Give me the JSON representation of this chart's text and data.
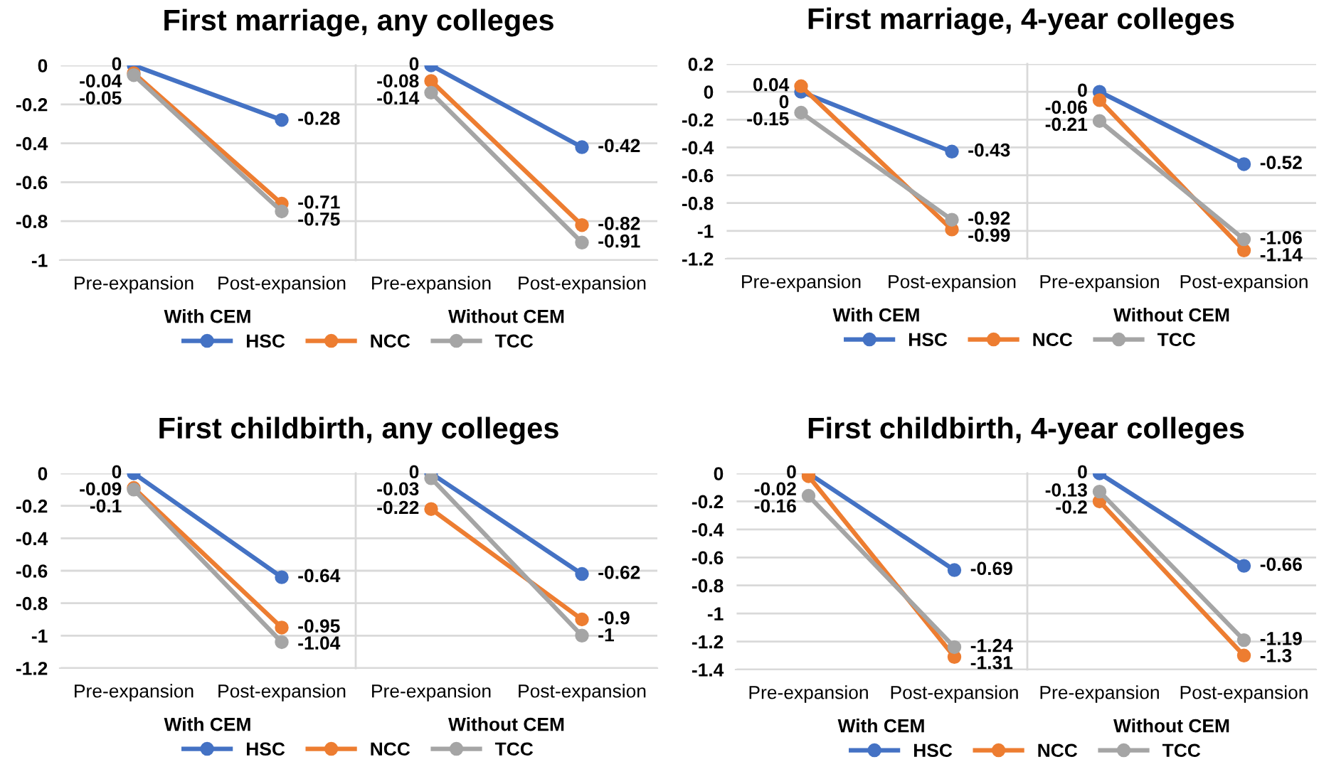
{
  "chart_data": [
    {
      "type": "line",
      "title": "First marriage, any colleges",
      "xlabel": "With CEM",
      "categories": [
        "Pre-expansion",
        "Post-expansion"
      ],
      "ylim": [
        -1,
        0
      ],
      "yticks": [
        0,
        -0.2,
        -0.4,
        -0.6,
        -0.8,
        -1
      ],
      "grid": "y",
      "marker": "circle",
      "data_labels": true,
      "legend": "bottom",
      "series": [
        {
          "name": "HSC",
          "color": "#4472c4",
          "values": [
            0,
            -0.28
          ]
        },
        {
          "name": "NCC",
          "color": "#ed7d31",
          "values": [
            -0.04,
            -0.71
          ]
        },
        {
          "name": "TCC",
          "color": "#a5a5a5",
          "values": [
            -0.05,
            -0.75
          ]
        }
      ]
    },
    {
      "type": "line",
      "xlabel": "Without CEM",
      "categories": [
        "Pre-expansion",
        "Post-expansion"
      ],
      "ylim": [
        -1,
        0
      ],
      "yticks": [
        0,
        -0.2,
        -0.4,
        -0.6,
        -0.8,
        -1
      ],
      "grid": "y",
      "marker": "circle",
      "data_labels": true,
      "tick_labels": "x",
      "series": [
        {
          "color": "#4472c4",
          "values": [
            0,
            -0.42
          ]
        },
        {
          "color": "#ed7d31",
          "values": [
            -0.08,
            -0.82
          ]
        },
        {
          "color": "#a5a5a5",
          "values": [
            -0.14,
            -0.91
          ]
        }
      ]
    },
    {
      "type": "line",
      "title": "First marriage, 4-year colleges",
      "xlabel": "With CEM",
      "categories": [
        "Pre-expansion",
        "Post-expansion"
      ],
      "ylim": [
        -1.2,
        0.2
      ],
      "yticks": [
        0.2,
        0,
        -0.2,
        -0.4,
        -0.6,
        -0.8,
        -1,
        -1.2
      ],
      "grid": "y",
      "marker": "circle",
      "data_labels": true,
      "legend": "bottom",
      "series": [
        {
          "name": "HSC",
          "color": "#4472c4",
          "values": [
            0,
            -0.43
          ]
        },
        {
          "name": "NCC",
          "color": "#ed7d31",
          "values": [
            0.04,
            -0.99
          ]
        },
        {
          "name": "TCC",
          "color": "#a5a5a5",
          "values": [
            -0.15,
            -0.92
          ]
        }
      ]
    },
    {
      "type": "line",
      "xlabel": "Without CEM",
      "categories": [
        "Pre-expansion",
        "Post-expansion"
      ],
      "ylim": [
        -1.2,
        0.2
      ],
      "yticks": [
        0.2,
        0,
        -0.2,
        -0.4,
        -0.6,
        -0.8,
        -1,
        -1.2
      ],
      "grid": "y",
      "marker": "circle",
      "data_labels": true,
      "tick_labels": "x",
      "series": [
        {
          "color": "#4472c4",
          "values": [
            0,
            -0.52
          ]
        },
        {
          "color": "#ed7d31",
          "values": [
            -0.06,
            -1.14
          ]
        },
        {
          "color": "#a5a5a5",
          "values": [
            -0.21,
            -1.06
          ]
        }
      ]
    },
    {
      "type": "line",
      "title": "First childbirth, any colleges",
      "xlabel": "With CEM",
      "categories": [
        "Pre-expansion",
        "Post-expansion"
      ],
      "ylim": [
        -1.2,
        0
      ],
      "yticks": [
        0,
        -0.2,
        -0.4,
        -0.6,
        -0.8,
        -1,
        -1.2
      ],
      "grid": "y",
      "marker": "circle",
      "data_labels": true,
      "legend": "bottom",
      "series": [
        {
          "name": "HSC",
          "color": "#4472c4",
          "values": [
            0,
            -0.64
          ]
        },
        {
          "name": "NCC",
          "color": "#ed7d31",
          "values": [
            -0.09,
            -0.95
          ]
        },
        {
          "name": "TCC",
          "color": "#a5a5a5",
          "values": [
            -0.1,
            -1.04
          ]
        }
      ]
    },
    {
      "type": "line",
      "xlabel": "Without CEM",
      "categories": [
        "Pre-expansion",
        "Post-expansion"
      ],
      "ylim": [
        -1.2,
        0
      ],
      "yticks": [
        0,
        -0.2,
        -0.4,
        -0.6,
        -0.8,
        -1,
        -1.2
      ],
      "grid": "y",
      "marker": "circle",
      "data_labels": true,
      "tick_labels": "x",
      "series": [
        {
          "color": "#4472c4",
          "values": [
            0,
            -0.62
          ]
        },
        {
          "color": "#ed7d31",
          "values": [
            -0.22,
            -0.9
          ]
        },
        {
          "color": "#a5a5a5",
          "values": [
            -0.03,
            -1
          ]
        }
      ]
    },
    {
      "type": "line",
      "title": "First childbirth, 4-year colleges",
      "xlabel": "With CEM",
      "categories": [
        "Pre-expansion",
        "Post-expansion"
      ],
      "ylim": [
        -1.4,
        0
      ],
      "yticks": [
        0,
        -0.2,
        -0.4,
        -0.6,
        -0.8,
        -1,
        -1.2,
        -1.4
      ],
      "grid": "y",
      "marker": "circle",
      "data_labels": true,
      "legend": "bottom",
      "series": [
        {
          "name": "HSC",
          "color": "#4472c4",
          "values": [
            0,
            -0.69
          ]
        },
        {
          "name": "NCC",
          "color": "#ed7d31",
          "values": [
            -0.02,
            -1.31
          ]
        },
        {
          "name": "TCC",
          "color": "#a5a5a5",
          "values": [
            -0.16,
            -1.24
          ]
        }
      ]
    },
    {
      "type": "line",
      "xlabel": "Without CEM",
      "categories": [
        "Pre-expansion",
        "Post-expansion"
      ],
      "ylim": [
        -1.4,
        0
      ],
      "yticks": [
        0,
        -0.2,
        -0.4,
        -0.6,
        -0.8,
        -1,
        -1.2,
        -1.4
      ],
      "grid": "y",
      "marker": "circle",
      "data_labels": true,
      "tick_labels": "x",
      "series": [
        {
          "color": "#4472c4",
          "values": [
            0,
            -0.66
          ]
        },
        {
          "color": "#ed7d31",
          "values": [
            -0.2,
            -1.3
          ]
        },
        {
          "color": "#a5a5a5",
          "values": [
            -0.13,
            -1.19
          ]
        }
      ]
    }
  ]
}
